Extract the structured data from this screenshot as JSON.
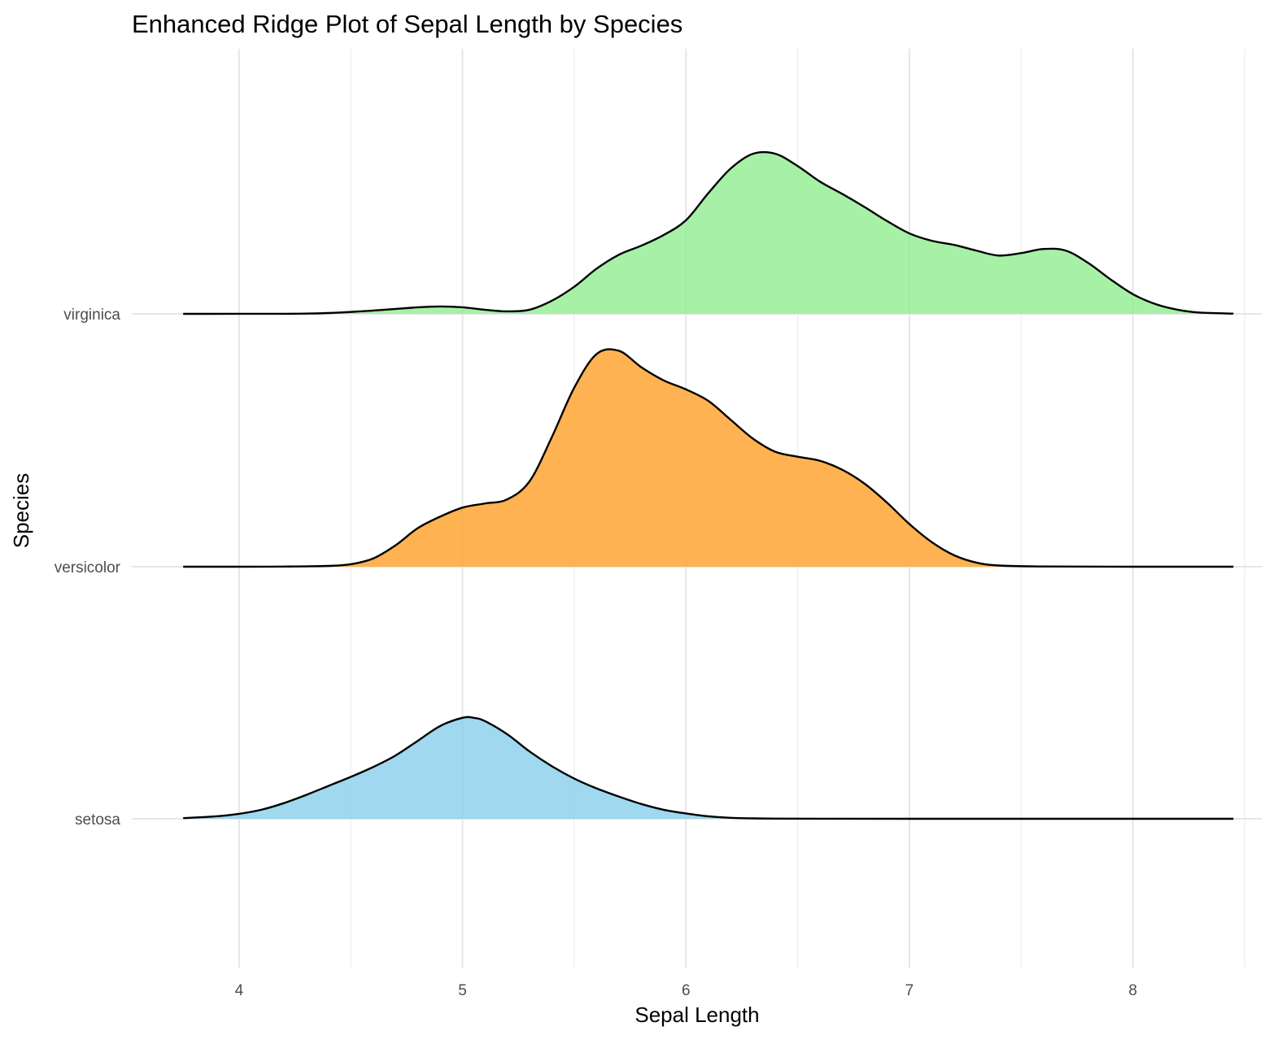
{
  "chart_data": {
    "type": "ridgeline",
    "title": "Enhanced Ridge Plot of Sepal Length by Species",
    "xlabel": "Sepal Length",
    "ylabel": "Species",
    "xlim": [
      3.52,
      8.58
    ],
    "x_ticks": [
      4,
      5,
      6,
      7,
      8
    ],
    "x_tick_labels": [
      "4",
      "5",
      "6",
      "7",
      "8"
    ],
    "x_minor_ticks": [
      4.5,
      5.5,
      6.5,
      7.5,
      8.5
    ],
    "categories": [
      "setosa",
      "versicolor",
      "virginica"
    ],
    "grid": true,
    "scale": 3.08,
    "series": [
      {
        "name": "setosa",
        "color": "#87CEEB",
        "alpha": 0.8,
        "x": [
          3.75,
          3.9,
          4.0,
          4.1,
          4.2,
          4.3,
          4.4,
          4.5,
          4.6,
          4.7,
          4.8,
          4.9,
          5.0,
          5.05,
          5.1,
          5.2,
          5.3,
          5.4,
          5.5,
          5.6,
          5.7,
          5.8,
          5.9,
          6.0,
          6.1,
          6.2,
          6.3,
          6.4,
          6.6,
          7.0,
          7.5,
          8.0,
          8.45
        ],
        "density": [
          0.008,
          0.03,
          0.06,
          0.11,
          0.19,
          0.29,
          0.4,
          0.51,
          0.63,
          0.77,
          0.95,
          1.13,
          1.23,
          1.23,
          1.19,
          1.03,
          0.82,
          0.64,
          0.49,
          0.37,
          0.27,
          0.18,
          0.11,
          0.065,
          0.03,
          0.012,
          0.005,
          0.002,
          0.0005,
          0.0,
          0.0,
          0.0,
          0.0
        ]
      },
      {
        "name": "versicolor",
        "color": "#FFA533",
        "alpha": 0.85,
        "x": [
          3.75,
          4.0,
          4.2,
          4.4,
          4.5,
          4.6,
          4.7,
          4.8,
          4.9,
          5.0,
          5.1,
          5.2,
          5.3,
          5.4,
          5.5,
          5.6,
          5.7,
          5.8,
          5.9,
          6.0,
          6.1,
          6.2,
          6.3,
          6.4,
          6.5,
          6.6,
          6.7,
          6.8,
          6.9,
          7.0,
          7.1,
          7.2,
          7.3,
          7.4,
          7.6,
          8.0,
          8.45
        ],
        "density": [
          0.0,
          0.0,
          0.002,
          0.01,
          0.03,
          0.1,
          0.26,
          0.47,
          0.61,
          0.72,
          0.77,
          0.82,
          1.04,
          1.58,
          2.18,
          2.59,
          2.63,
          2.43,
          2.27,
          2.16,
          2.02,
          1.79,
          1.56,
          1.4,
          1.34,
          1.29,
          1.18,
          1.01,
          0.78,
          0.52,
          0.3,
          0.14,
          0.05,
          0.015,
          0.003,
          0.0,
          0.0
        ]
      },
      {
        "name": "virginica",
        "color": "#90EE90",
        "alpha": 0.8,
        "x": [
          3.75,
          4.2,
          4.4,
          4.6,
          4.8,
          4.9,
          5.0,
          5.1,
          5.2,
          5.3,
          5.4,
          5.5,
          5.6,
          5.7,
          5.8,
          5.9,
          6.0,
          6.1,
          6.2,
          6.3,
          6.4,
          6.5,
          6.6,
          6.7,
          6.8,
          6.9,
          7.0,
          7.1,
          7.2,
          7.3,
          7.4,
          7.5,
          7.6,
          7.7,
          7.8,
          7.9,
          8.0,
          8.1,
          8.2,
          8.3,
          8.45
        ],
        "density": [
          0.0,
          0.001,
          0.01,
          0.04,
          0.08,
          0.09,
          0.08,
          0.05,
          0.03,
          0.05,
          0.16,
          0.33,
          0.55,
          0.72,
          0.83,
          0.96,
          1.14,
          1.47,
          1.77,
          1.95,
          1.95,
          1.8,
          1.61,
          1.46,
          1.3,
          1.13,
          0.98,
          0.89,
          0.84,
          0.77,
          0.71,
          0.74,
          0.79,
          0.77,
          0.62,
          0.42,
          0.24,
          0.12,
          0.05,
          0.015,
          0.003
        ]
      }
    ]
  }
}
